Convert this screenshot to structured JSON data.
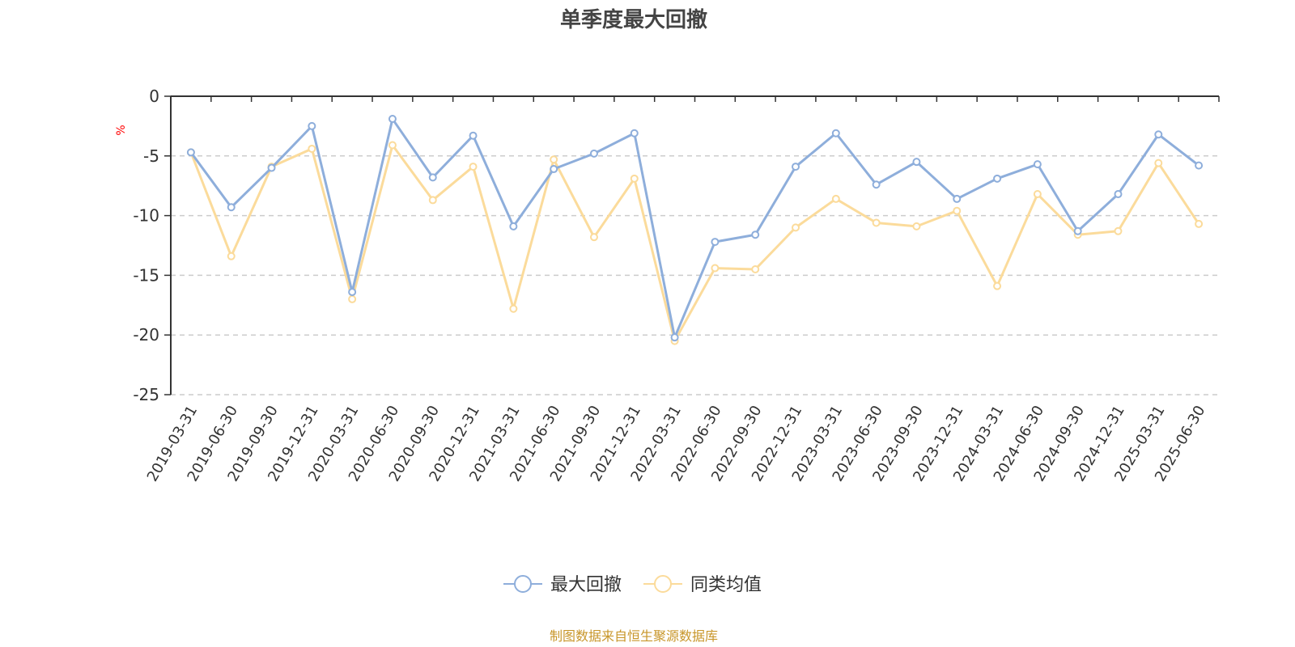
{
  "chart_data": {
    "type": "line",
    "title": "单季度最大回撤",
    "ylabel": "%",
    "ylim": [
      -25,
      0
    ],
    "yticks": [
      0,
      -5,
      -10,
      -15,
      -20,
      -25
    ],
    "grid": true,
    "legend_position": "bottom",
    "categories": [
      "2019-03-31",
      "2019-06-30",
      "2019-09-30",
      "2019-12-31",
      "2020-03-31",
      "2020-06-30",
      "2020-09-30",
      "2020-12-31",
      "2021-03-31",
      "2021-06-30",
      "2021-09-30",
      "2021-12-31",
      "2022-03-31",
      "2022-06-30",
      "2022-09-30",
      "2022-12-31",
      "2023-03-31",
      "2023-06-30",
      "2023-09-30",
      "2023-12-31",
      "2024-03-31",
      "2024-06-30",
      "2024-09-30",
      "2024-12-31",
      "2025-03-31",
      "2025-06-30"
    ],
    "series": [
      {
        "name": "最大回撤",
        "color": "#8eaedb",
        "values": [
          -4.7,
          -9.3,
          -6.0,
          -2.5,
          -16.4,
          -1.9,
          -6.8,
          -3.3,
          -10.9,
          -6.1,
          -4.8,
          -3.1,
          -20.2,
          -12.2,
          -11.6,
          -5.9,
          -3.1,
          -7.4,
          -5.5,
          -8.6,
          -6.9,
          -5.7,
          -11.3,
          -8.2,
          -3.2,
          -5.8
        ]
      },
      {
        "name": "同类均值",
        "color": "#fbdb9b",
        "values": [
          -4.7,
          -13.4,
          -5.9,
          -4.4,
          -17.0,
          -4.1,
          -8.7,
          -5.9,
          -17.8,
          -5.3,
          -11.8,
          -6.9,
          -20.5,
          -14.4,
          -14.5,
          -11.0,
          -8.6,
          -10.6,
          -10.9,
          -9.6,
          -15.9,
          -8.2,
          -11.6,
          -11.3,
          -5.6,
          -10.7
        ]
      }
    ]
  },
  "source": {
    "text": "制图数据来自恒生聚源数据库",
    "color": "#c8962a"
  },
  "colors": {
    "unit": "#ff0000",
    "axis": "#333333",
    "grid": "#cccccc"
  }
}
